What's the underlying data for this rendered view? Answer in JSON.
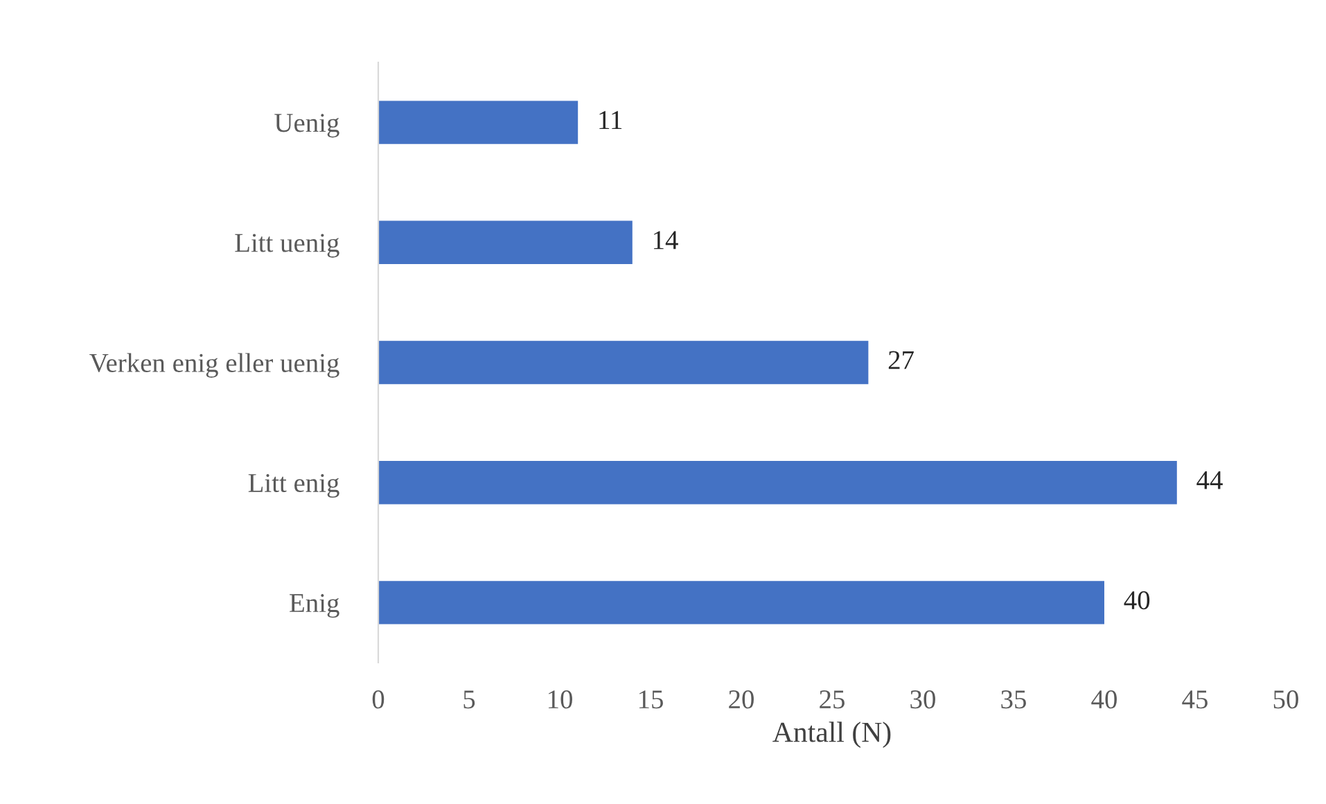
{
  "chart_data": {
    "type": "bar",
    "orientation": "horizontal",
    "xlabel": "Antall (N)",
    "categories": [
      "Uenig",
      "Litt uenig",
      "Verken enig eller uenig",
      "Litt enig",
      "Enig"
    ],
    "values": [
      11,
      14,
      27,
      44,
      40
    ],
    "color": "#4472c4",
    "xlim": [
      0,
      50
    ],
    "xticks": [
      0,
      5,
      10,
      15,
      20,
      25,
      30,
      35,
      40,
      45,
      50
    ],
    "data_labels": true,
    "grid": false,
    "legend": false
  }
}
